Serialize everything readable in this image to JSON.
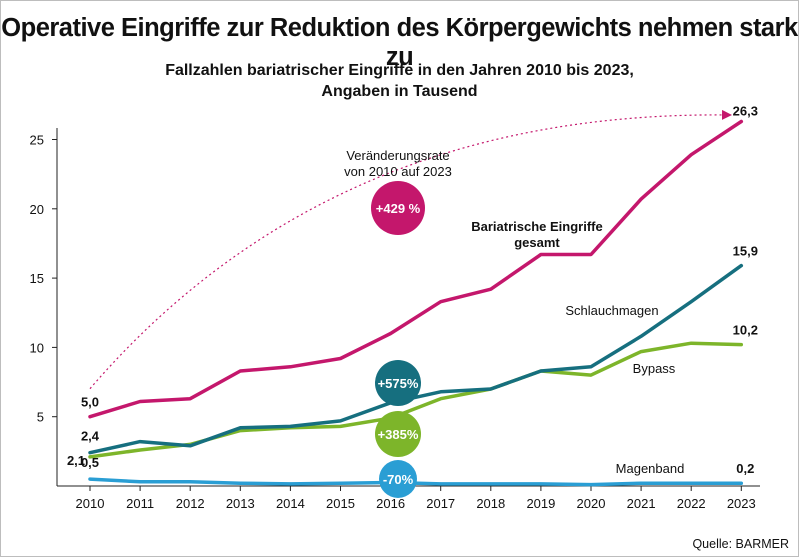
{
  "title": "Operative Eingriffe zur Reduktion des Körpergewichts nehmen stark zu",
  "subtitle_line1": "Fallzahlen bariatrischer Eingriffe in den Jahren 2010 bis 2023,",
  "subtitle_line2": "Angaben in Tausend",
  "source": "Quelle: BARMER",
  "colors": {
    "gesamt": "#c4176c",
    "schlauchmagen": "#166f7f",
    "bypass": "#7db52a",
    "magenband": "#2a9ed4"
  },
  "chart_data": {
    "type": "line",
    "x": [
      "2010",
      "2011",
      "2012",
      "2013",
      "2014",
      "2015",
      "2016",
      "2017",
      "2018",
      "2019",
      "2020",
      "2021",
      "2022",
      "2023"
    ],
    "ylim": [
      0,
      27
    ],
    "yticks": [
      "5",
      "10",
      "15",
      "20",
      "25"
    ],
    "xlabel": "",
    "ylabel": "",
    "series": [
      {
        "name": "Bariatrische Eingriffe gesamt",
        "key": "gesamt",
        "values": [
          5.0,
          6.1,
          6.3,
          8.3,
          8.6,
          9.2,
          11.0,
          13.3,
          14.2,
          16.7,
          16.7,
          20.7,
          23.9,
          26.3
        ]
      },
      {
        "name": "Schlauchmagen",
        "key": "schlauchmagen",
        "values": [
          2.4,
          3.2,
          2.9,
          4.2,
          4.3,
          4.7,
          6.0,
          6.8,
          7.0,
          8.3,
          8.6,
          10.8,
          13.3,
          15.9
        ]
      },
      {
        "name": "Bypass",
        "key": "bypass",
        "values": [
          2.1,
          2.6,
          3.0,
          4.0,
          4.2,
          4.3,
          4.9,
          6.3,
          7.0,
          8.3,
          8.0,
          9.7,
          10.3,
          10.2
        ]
      },
      {
        "name": "Magenband",
        "key": "magenband",
        "values": [
          0.5,
          0.3,
          0.3,
          0.2,
          0.15,
          0.2,
          0.25,
          0.15,
          0.15,
          0.15,
          0.1,
          0.2,
          0.2,
          0.2
        ]
      }
    ],
    "labels": {
      "gesamt_start": "5,0",
      "gesamt_end": "26,3",
      "schlauchmagen_start": "2,4",
      "schlauchmagen_end": "15,9",
      "bypass_start": "2,1",
      "bypass_end": "10,2",
      "magenband_start": "0,5",
      "magenband_end": "0,2"
    },
    "series_labels": {
      "gesamt_line1": "Bariatrische Eingriffe",
      "gesamt_line2": "gesamt",
      "schlauchmagen": "Schlauchmagen",
      "bypass": "Bypass",
      "magenband": "Magenband"
    },
    "annotation_line1": "Veränderungsrate",
    "annotation_line2": "von 2010 auf 2023",
    "badges": {
      "gesamt": "+429 %",
      "schlauchmagen": "+575%",
      "bypass": "+385%",
      "magenband": "-70%"
    }
  }
}
